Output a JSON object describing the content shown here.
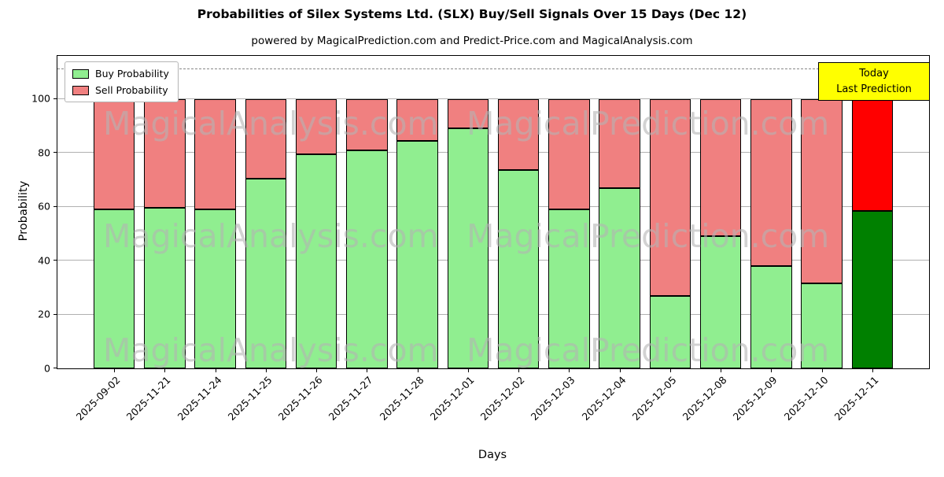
{
  "title": "Probabilities of Silex Systems Ltd. (SLX) Buy/Sell Signals Over 15 Days (Dec 12)",
  "subtitle": "powered by MagicalPrediction.com and Predict-Price.com and MagicalAnalysis.com",
  "legend": {
    "buy": "Buy Probability",
    "sell": "Sell Probability"
  },
  "today_box": {
    "line1": "Today",
    "line2": "Last Prediction",
    "bg": "#ffff00"
  },
  "watermarks": [
    "MagicalAnalysis.com",
    "MagicalPrediction.com"
  ],
  "axes": {
    "xlabel": "Days",
    "ylabel": "Probability",
    "yticks": [
      0,
      20,
      40,
      60,
      80,
      100
    ],
    "ylim": [
      0,
      116
    ],
    "dashed_line_y": 111,
    "grid": true
  },
  "colors": {
    "grid": "#b0b0b0",
    "dashed": "#888888"
  },
  "chart_data": {
    "type": "bar",
    "stacked": true,
    "title": "Probabilities of Silex Systems Ltd. (SLX) Buy/Sell Signals Over 15 Days (Dec 12)",
    "xlabel": "Days",
    "ylabel": "Probability",
    "ylim": [
      0,
      116
    ],
    "legend_position": "upper left",
    "categories": [
      "2025-09-02",
      "2025-11-21",
      "2025-11-24",
      "2025-11-25",
      "2025-11-26",
      "2025-11-27",
      "2025-11-28",
      "2025-12-01",
      "2025-12-02",
      "2025-12-03",
      "2025-12-04",
      "2025-12-05",
      "2025-12-08",
      "2025-12-09",
      "2025-12-10",
      "2025-12-11"
    ],
    "series": [
      {
        "name": "Buy Probability",
        "color": "#90ee90",
        "values": [
          59,
          59.5,
          59,
          70.5,
          79.5,
          81,
          84.5,
          89,
          73.5,
          59,
          67,
          27,
          49,
          38,
          31.5,
          58.5
        ]
      },
      {
        "name": "Sell Probability",
        "color": "#f08080",
        "values": [
          41,
          40.5,
          41,
          29.5,
          20.5,
          19,
          15.5,
          11,
          26.5,
          41,
          33,
          73,
          51,
          62,
          68.5,
          41.5
        ]
      }
    ],
    "last_bar_colors": {
      "buy": "#008000",
      "sell": "#ff0000"
    }
  }
}
